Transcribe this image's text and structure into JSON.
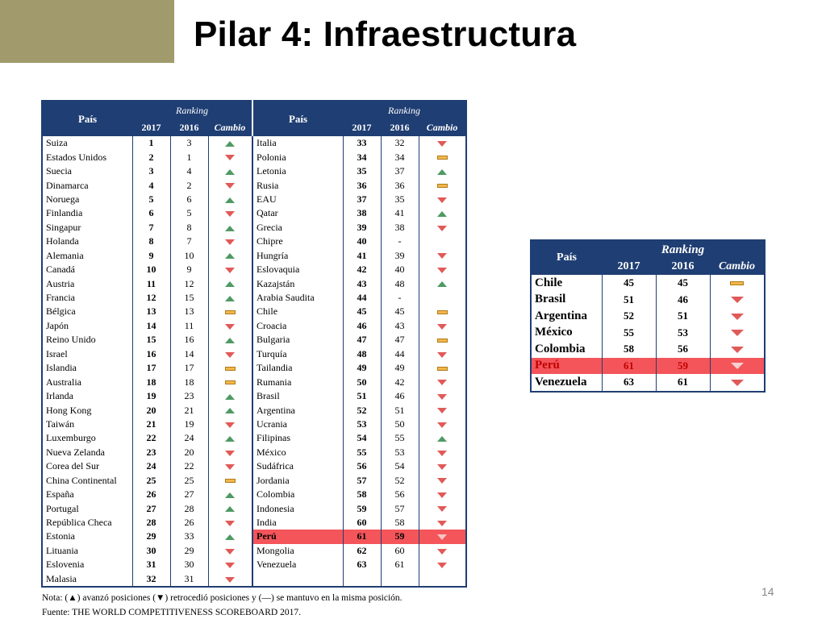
{
  "slide": {
    "title": "Pilar 4: Infraestructura",
    "number": "14"
  },
  "main_table": {
    "headers": {
      "country": "País",
      "ranking": "Ranking",
      "y2017": "2017",
      "y2016": "2016",
      "change": "Cambio"
    },
    "left": [
      {
        "country": "Suiza",
        "r2017": "1",
        "r2016": "3",
        "change": "up"
      },
      {
        "country": "Estados Unidos",
        "r2017": "2",
        "r2016": "1",
        "change": "down"
      },
      {
        "country": "Suecia",
        "r2017": "3",
        "r2016": "4",
        "change": "up"
      },
      {
        "country": "Dinamarca",
        "r2017": "4",
        "r2016": "2",
        "change": "down"
      },
      {
        "country": "Noruega",
        "r2017": "5",
        "r2016": "6",
        "change": "up"
      },
      {
        "country": "Finlandia",
        "r2017": "6",
        "r2016": "5",
        "change": "down"
      },
      {
        "country": "Singapur",
        "r2017": "7",
        "r2016": "8",
        "change": "up"
      },
      {
        "country": "Holanda",
        "r2017": "8",
        "r2016": "7",
        "change": "down"
      },
      {
        "country": "Alemania",
        "r2017": "9",
        "r2016": "10",
        "change": "up"
      },
      {
        "country": "Canadá",
        "r2017": "10",
        "r2016": "9",
        "change": "down"
      },
      {
        "country": "Austria",
        "r2017": "11",
        "r2016": "12",
        "change": "up"
      },
      {
        "country": "Francia",
        "r2017": "12",
        "r2016": "15",
        "change": "up"
      },
      {
        "country": "Bélgica",
        "r2017": "13",
        "r2016": "13",
        "change": "same"
      },
      {
        "country": "Japón",
        "r2017": "14",
        "r2016": "11",
        "change": "down"
      },
      {
        "country": "Reino Unido",
        "r2017": "15",
        "r2016": "16",
        "change": "up"
      },
      {
        "country": "Israel",
        "r2017": "16",
        "r2016": "14",
        "change": "down"
      },
      {
        "country": "Islandia",
        "r2017": "17",
        "r2016": "17",
        "change": "same"
      },
      {
        "country": "Australia",
        "r2017": "18",
        "r2016": "18",
        "change": "same"
      },
      {
        "country": "Irlanda",
        "r2017": "19",
        "r2016": "23",
        "change": "up"
      },
      {
        "country": "Hong Kong",
        "r2017": "20",
        "r2016": "21",
        "change": "up"
      },
      {
        "country": "Taiwán",
        "r2017": "21",
        "r2016": "19",
        "change": "down"
      },
      {
        "country": "Luxemburgo",
        "r2017": "22",
        "r2016": "24",
        "change": "up"
      },
      {
        "country": "Nueva Zelanda",
        "r2017": "23",
        "r2016": "20",
        "change": "down"
      },
      {
        "country": "Corea del Sur",
        "r2017": "24",
        "r2016": "22",
        "change": "down"
      },
      {
        "country": "China Continental",
        "r2017": "25",
        "r2016": "25",
        "change": "same"
      },
      {
        "country": "España",
        "r2017": "26",
        "r2016": "27",
        "change": "up"
      },
      {
        "country": "Portugal",
        "r2017": "27",
        "r2016": "28",
        "change": "up"
      },
      {
        "country": "República Checa",
        "r2017": "28",
        "r2016": "26",
        "change": "down"
      },
      {
        "country": "Estonia",
        "r2017": "29",
        "r2016": "33",
        "change": "up"
      },
      {
        "country": "Lituania",
        "r2017": "30",
        "r2016": "29",
        "change": "down"
      },
      {
        "country": "Eslovenia",
        "r2017": "31",
        "r2016": "30",
        "change": "down"
      },
      {
        "country": "Malasia",
        "r2017": "32",
        "r2016": "31",
        "change": "down"
      }
    ],
    "right": [
      {
        "country": "Italia",
        "r2017": "33",
        "r2016": "32",
        "change": "down"
      },
      {
        "country": "Polonia",
        "r2017": "34",
        "r2016": "34",
        "change": "same"
      },
      {
        "country": "Letonia",
        "r2017": "35",
        "r2016": "37",
        "change": "up"
      },
      {
        "country": "Rusia",
        "r2017": "36",
        "r2016": "36",
        "change": "same"
      },
      {
        "country": "EAU",
        "r2017": "37",
        "r2016": "35",
        "change": "down"
      },
      {
        "country": "Qatar",
        "r2017": "38",
        "r2016": "41",
        "change": "up"
      },
      {
        "country": "Grecia",
        "r2017": "39",
        "r2016": "38",
        "change": "down"
      },
      {
        "country": "Chipre",
        "r2017": "40",
        "r2016": "-",
        "change": ""
      },
      {
        "country": "Hungría",
        "r2017": "41",
        "r2016": "39",
        "change": "down"
      },
      {
        "country": "Eslovaquia",
        "r2017": "42",
        "r2016": "40",
        "change": "down"
      },
      {
        "country": "Kazajstán",
        "r2017": "43",
        "r2016": "48",
        "change": "up"
      },
      {
        "country": "Arabia Saudita",
        "r2017": "44",
        "r2016": "-",
        "change": ""
      },
      {
        "country": "Chile",
        "r2017": "45",
        "r2016": "45",
        "change": "same"
      },
      {
        "country": "Croacia",
        "r2017": "46",
        "r2016": "43",
        "change": "down"
      },
      {
        "country": "Bulgaria",
        "r2017": "47",
        "r2016": "47",
        "change": "same"
      },
      {
        "country": "Turquía",
        "r2017": "48",
        "r2016": "44",
        "change": "down"
      },
      {
        "country": "Tailandia",
        "r2017": "49",
        "r2016": "49",
        "change": "same"
      },
      {
        "country": "Rumania",
        "r2017": "50",
        "r2016": "42",
        "change": "down"
      },
      {
        "country": "Brasil",
        "r2017": "51",
        "r2016": "46",
        "change": "down"
      },
      {
        "country": "Argentina",
        "r2017": "52",
        "r2016": "51",
        "change": "down"
      },
      {
        "country": "Ucrania",
        "r2017": "53",
        "r2016": "50",
        "change": "down"
      },
      {
        "country": "Filipinas",
        "r2017": "54",
        "r2016": "55",
        "change": "up"
      },
      {
        "country": "México",
        "r2017": "55",
        "r2016": "53",
        "change": "down"
      },
      {
        "country": "Sudáfrica",
        "r2017": "56",
        "r2016": "54",
        "change": "down"
      },
      {
        "country": "Jordania",
        "r2017": "57",
        "r2016": "52",
        "change": "down"
      },
      {
        "country": "Colombia",
        "r2017": "58",
        "r2016": "56",
        "change": "down"
      },
      {
        "country": "Indonesia",
        "r2017": "59",
        "r2016": "57",
        "change": "down"
      },
      {
        "country": "India",
        "r2017": "60",
        "r2016": "58",
        "change": "down"
      },
      {
        "country": "Perú",
        "r2017": "61",
        "r2016": "59",
        "change": "down",
        "highlight": true
      },
      {
        "country": "Mongolia",
        "r2017": "62",
        "r2016": "60",
        "change": "down"
      },
      {
        "country": "Venezuela",
        "r2017": "63",
        "r2016": "61",
        "change": "down"
      },
      {
        "country": "",
        "r2017": "",
        "r2016": "",
        "change": ""
      }
    ]
  },
  "latam_table": {
    "headers": {
      "country": "País",
      "ranking": "Ranking",
      "y2017": "2017",
      "y2016": "2016",
      "change": "Cambio"
    },
    "rows": [
      {
        "country": "Chile",
        "r2017": "45",
        "r2016": "45",
        "change": "same"
      },
      {
        "country": "Brasil",
        "r2017": "51",
        "r2016": "46",
        "change": "down"
      },
      {
        "country": "Argentina",
        "r2017": "52",
        "r2016": "51",
        "change": "down"
      },
      {
        "country": "México",
        "r2017": "55",
        "r2016": "53",
        "change": "down"
      },
      {
        "country": "Colombia",
        "r2017": "58",
        "r2016": "56",
        "change": "down"
      },
      {
        "country": "Perú",
        "r2017": "61",
        "r2016": "59",
        "change": "down",
        "highlight": true
      },
      {
        "country": "Venezuela",
        "r2017": "63",
        "r2016": "61",
        "change": "down"
      }
    ]
  },
  "notes": {
    "legend": "Nota: (▲) avanzó posiciones (▼) retrocedió posiciones y  (—) se mantuvo en la misma posición.",
    "source": "Fuente: THE WORLD COMPETITIVENESS SCOREBOARD 2017."
  },
  "colors": {
    "header": "#1f3e73",
    "highlight": "#f4555a",
    "up": "#4f9a63",
    "down": "#e05a58",
    "same": "#f2b84a",
    "accent_block": "#a09a6c"
  }
}
